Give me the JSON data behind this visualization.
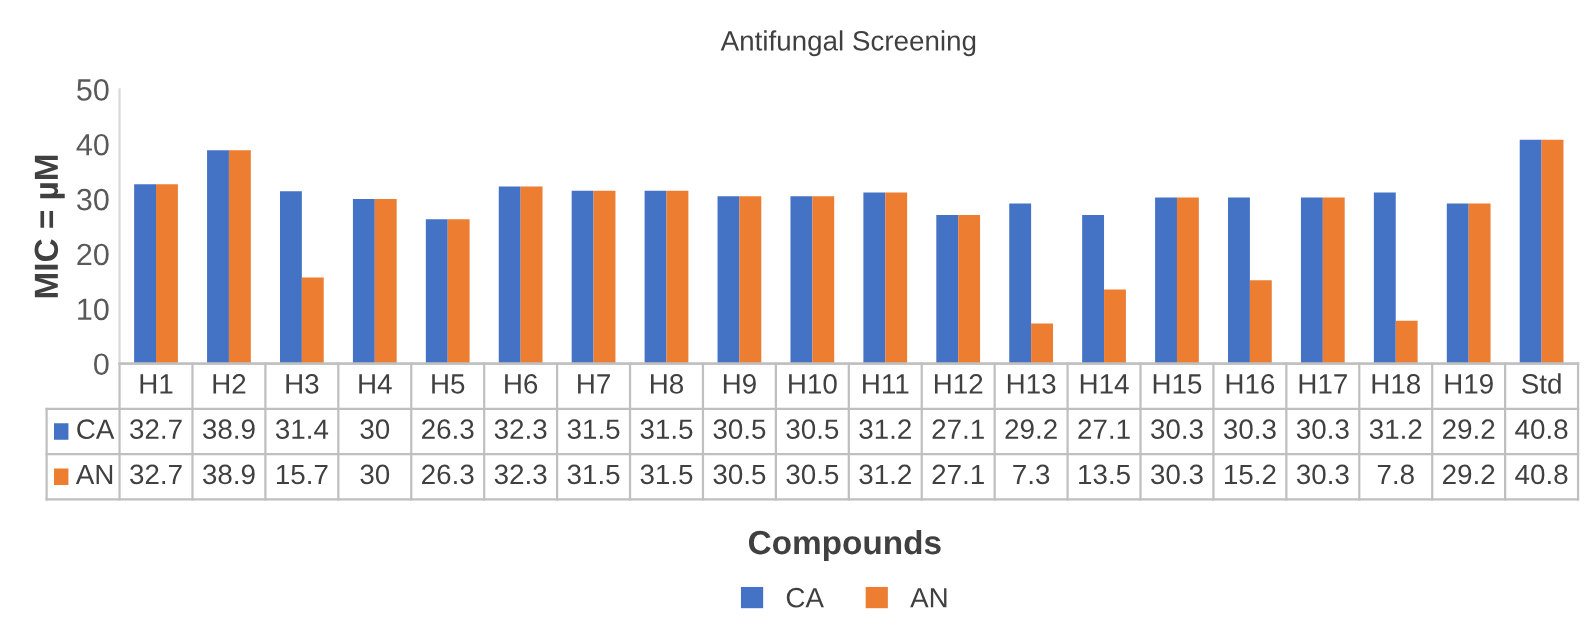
{
  "chart_data": {
    "type": "bar",
    "title": "Antifungal Screening",
    "xlabel": "Compounds",
    "ylabel": "MIC = µM",
    "categories": [
      "H1",
      "H2",
      "H3",
      "H4",
      "H5",
      "H6",
      "H7",
      "H8",
      "H9",
      "H10",
      "H11",
      "H12",
      "H13",
      "H14",
      "H15",
      "H16",
      "H17",
      "H18",
      "H19",
      "Std"
    ],
    "series": [
      {
        "name": "CA",
        "color": "#4472c4",
        "values": [
          32.7,
          38.9,
          31.4,
          30,
          26.3,
          32.3,
          31.5,
          31.5,
          30.5,
          30.5,
          31.2,
          27.1,
          29.2,
          27.1,
          30.3,
          30.3,
          30.3,
          31.2,
          29.2,
          40.8
        ]
      },
      {
        "name": "AN",
        "color": "#ed7d31",
        "values": [
          32.7,
          38.9,
          15.7,
          30,
          26.3,
          32.3,
          31.5,
          31.5,
          30.5,
          30.5,
          31.2,
          27.1,
          7.3,
          13.5,
          30.3,
          15.2,
          30.3,
          7.8,
          29.2,
          40.8
        ]
      }
    ],
    "ylim": [
      0,
      50
    ],
    "yticks": [
      0,
      10,
      20,
      30,
      40,
      50
    ],
    "grid": false,
    "legend": "bottom",
    "data_labels": true
  }
}
